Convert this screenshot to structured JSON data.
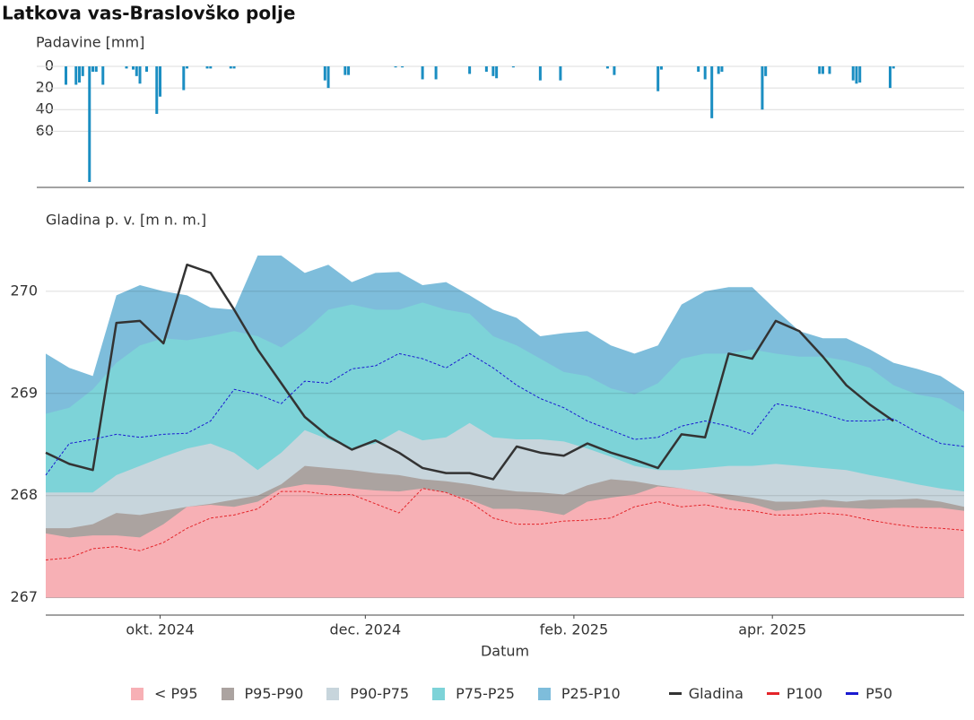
{
  "title": "Latkova vas-Braslovško polje",
  "chart_data": [
    {
      "type": "bar",
      "ylabel": "Padavine [mm]",
      "color": "#1b8ec2",
      "y_inverted": true,
      "xlim": [
        0,
        273
      ],
      "ylim": [
        0,
        112
      ],
      "yticks": [
        0,
        20,
        40,
        60
      ],
      "grid": true,
      "x": [
        6,
        9,
        10,
        11,
        13,
        14,
        15,
        17,
        24,
        26,
        27,
        28,
        30,
        33,
        34,
        41,
        42,
        48,
        49,
        55,
        56,
        83,
        84,
        89,
        90,
        104,
        106,
        112,
        116,
        126,
        131,
        133,
        134,
        139,
        147,
        153,
        167,
        169,
        182,
        183,
        194,
        196,
        198,
        200,
        201,
        213,
        214,
        230,
        231,
        233,
        240,
        241,
        242,
        251,
        252
      ],
      "values": [
        17,
        17,
        15,
        9,
        107,
        5,
        5,
        17,
        2,
        3,
        9,
        16,
        5,
        44,
        28,
        22,
        2,
        2,
        2,
        2,
        2,
        13,
        20,
        8,
        8,
        1,
        1,
        12,
        12,
        7,
        5,
        9,
        11,
        1,
        13,
        13,
        2,
        8,
        23,
        3,
        5,
        12,
        48,
        7,
        5,
        40,
        9,
        7,
        7,
        7,
        13,
        16,
        15,
        20,
        2
      ]
    },
    {
      "type": "area",
      "ylabel": "Gladina p. v. [m n. m.]",
      "xlabel": "Datum",
      "xlim": [
        0,
        273
      ],
      "ylim": [
        266.83,
        270.85
      ],
      "yticks": [
        267,
        268,
        269,
        270
      ],
      "grid": true,
      "xticks": [
        {
          "value": 34,
          "label": "okt. 2024"
        },
        {
          "value": 95,
          "label": "dec. 2024"
        },
        {
          "value": 157,
          "label": "feb. 2025"
        },
        {
          "value": 216,
          "label": "apr. 2025"
        }
      ],
      "x": [
        0,
        7,
        14,
        21,
        28,
        35,
        42,
        49,
        56,
        63,
        70,
        77,
        84,
        91,
        98,
        105,
        112,
        119,
        126,
        133,
        140,
        147,
        154,
        161,
        168,
        175,
        182,
        189,
        196,
        203,
        210,
        217,
        224,
        231,
        238,
        245,
        252,
        259,
        266,
        273
      ],
      "series": [
        {
          "name": "< P95",
          "color": "#f7b0b5",
          "fill": true,
          "values": [
            267.63,
            267.59,
            267.61,
            267.61,
            267.59,
            267.72,
            267.89,
            267.91,
            267.89,
            267.94,
            268.07,
            268.11,
            268.1,
            268.07,
            268.05,
            268.04,
            268.07,
            268.03,
            267.96,
            267.87,
            267.87,
            267.85,
            267.81,
            267.94,
            267.98,
            268.01,
            268.09,
            268.07,
            268.03,
            267.96,
            267.92,
            267.85,
            267.87,
            267.89,
            267.88,
            267.87,
            267.88,
            267.88,
            267.88,
            267.85
          ]
        },
        {
          "name": "P95-P90",
          "color": "#aba3a0",
          "fill": true,
          "values": [
            267.68,
            267.68,
            267.72,
            267.83,
            267.81,
            267.85,
            267.89,
            267.92,
            267.96,
            268.0,
            268.11,
            268.29,
            268.27,
            268.25,
            268.22,
            268.2,
            268.16,
            268.14,
            268.11,
            268.07,
            268.04,
            268.03,
            268.01,
            268.1,
            268.16,
            268.14,
            268.1,
            268.07,
            268.03,
            268.01,
            267.98,
            267.94,
            267.94,
            267.96,
            267.94,
            267.96,
            267.96,
            267.97,
            267.94,
            267.89
          ]
        },
        {
          "name": "P90-P75",
          "color": "#c7d5dc",
          "fill": true,
          "values": [
            268.03,
            268.03,
            268.03,
            268.2,
            268.29,
            268.38,
            268.46,
            268.51,
            268.42,
            268.25,
            268.42,
            268.64,
            268.55,
            268.46,
            268.51,
            268.64,
            268.54,
            268.57,
            268.71,
            268.57,
            268.55,
            268.55,
            268.53,
            268.46,
            268.38,
            268.29,
            268.25,
            268.25,
            268.27,
            268.29,
            268.29,
            268.31,
            268.29,
            268.27,
            268.25,
            268.2,
            268.16,
            268.11,
            268.07,
            268.04
          ]
        },
        {
          "name": "P75-P25",
          "color": "#7dd3d8",
          "fill": true,
          "values": [
            268.8,
            268.86,
            269.04,
            269.3,
            269.47,
            269.54,
            269.52,
            269.56,
            269.61,
            269.56,
            269.45,
            269.61,
            269.82,
            269.87,
            269.82,
            269.82,
            269.89,
            269.82,
            269.78,
            269.56,
            269.47,
            269.34,
            269.21,
            269.17,
            269.05,
            268.99,
            269.1,
            269.34,
            269.39,
            269.39,
            269.43,
            269.39,
            269.36,
            269.36,
            269.32,
            269.25,
            269.08,
            268.99,
            268.95,
            268.82
          ]
        },
        {
          "name": "P25-P10",
          "color": "#7ebddb",
          "fill": true,
          "values": [
            269.39,
            269.25,
            269.17,
            269.96,
            270.06,
            270.0,
            269.96,
            269.84,
            269.82,
            270.35,
            270.35,
            270.18,
            270.26,
            270.09,
            270.18,
            270.19,
            270.06,
            270.09,
            269.96,
            269.82,
            269.74,
            269.56,
            269.59,
            269.61,
            269.47,
            269.39,
            269.47,
            269.87,
            270.0,
            270.04,
            270.04,
            269.82,
            269.61,
            269.54,
            269.54,
            269.43,
            269.3,
            269.24,
            269.17,
            269.02
          ]
        },
        {
          "name": "Gladina",
          "color": "#333333",
          "values": [
            268.42,
            268.31,
            268.25,
            269.69,
            269.71,
            269.49,
            270.26,
            270.18,
            269.82,
            269.43,
            269.1,
            268.77,
            268.58,
            268.45,
            268.54,
            268.42,
            268.27,
            268.22,
            268.22,
            268.16,
            268.48,
            268.42,
            268.39,
            268.51,
            268.42,
            268.35,
            268.27,
            268.6,
            268.57,
            269.39,
            269.34,
            269.71,
            269.61,
            269.36,
            269.08,
            268.89,
            268.73,
            null,
            null,
            null
          ]
        },
        {
          "name": "P100",
          "color": "#e4252a",
          "dashed": true,
          "values": [
            267.37,
            267.39,
            267.48,
            267.5,
            267.46,
            267.54,
            267.68,
            267.78,
            267.81,
            267.87,
            268.04,
            268.04,
            268.01,
            268.01,
            267.92,
            267.83,
            268.07,
            268.03,
            267.94,
            267.78,
            267.72,
            267.72,
            267.75,
            267.76,
            267.78,
            267.89,
            267.94,
            267.89,
            267.91,
            267.87,
            267.85,
            267.81,
            267.81,
            267.83,
            267.81,
            267.76,
            267.72,
            267.69,
            267.68,
            267.66
          ]
        },
        {
          "name": "P50",
          "color": "#1a1ad0",
          "dashed": true,
          "values": [
            268.2,
            268.51,
            268.55,
            268.6,
            268.57,
            268.6,
            268.61,
            268.73,
            269.04,
            268.99,
            268.9,
            269.12,
            269.1,
            269.24,
            269.27,
            269.39,
            269.34,
            269.25,
            269.39,
            269.25,
            269.08,
            268.95,
            268.86,
            268.73,
            268.64,
            268.55,
            268.57,
            268.68,
            268.73,
            268.68,
            268.6,
            268.9,
            268.86,
            268.8,
            268.73,
            268.73,
            268.75,
            268.62,
            268.51,
            268.48
          ]
        }
      ]
    }
  ]
}
